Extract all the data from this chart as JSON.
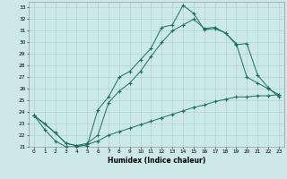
{
  "bg_color": "#cce8e8",
  "grid_color": "#aacccc",
  "line_color": "#1a7060",
  "xlabel": "Humidex (Indice chaleur)",
  "xlim": [
    -0.5,
    23.5
  ],
  "ylim": [
    21,
    33.5
  ],
  "yticks": [
    21,
    22,
    23,
    24,
    25,
    26,
    27,
    28,
    29,
    30,
    31,
    32,
    33
  ],
  "xticks": [
    0,
    1,
    2,
    3,
    4,
    5,
    6,
    7,
    8,
    9,
    10,
    11,
    12,
    13,
    14,
    15,
    16,
    17,
    18,
    19,
    20,
    21,
    22,
    23
  ],
  "line1_x": [
    0,
    1,
    2,
    3,
    4,
    5,
    6,
    7,
    8,
    9,
    10,
    11,
    12,
    13,
    14,
    15,
    16,
    17,
    18,
    19,
    20,
    21,
    22,
    23
  ],
  "line1_y": [
    23.7,
    23.0,
    22.2,
    21.3,
    21.1,
    21.1,
    24.2,
    25.3,
    27.0,
    27.5,
    28.5,
    29.5,
    31.3,
    31.5,
    33.2,
    32.5,
    31.1,
    31.2,
    30.8,
    29.9,
    27.0,
    26.5,
    26.0,
    25.5
  ],
  "line2_x": [
    0,
    2,
    3,
    4,
    5,
    6,
    7,
    8,
    9,
    10,
    11,
    12,
    13,
    14,
    15,
    16,
    17,
    18,
    19,
    20,
    21,
    22,
    23
  ],
  "line2_y": [
    23.7,
    22.2,
    21.3,
    21.1,
    21.3,
    22.0,
    24.8,
    25.8,
    26.5,
    27.5,
    28.8,
    30.0,
    31.0,
    31.5,
    32.0,
    31.2,
    31.3,
    30.8,
    29.8,
    29.9,
    27.2,
    26.1,
    25.3
  ],
  "line3_x": [
    0,
    1,
    2,
    3,
    4,
    5,
    6,
    7,
    8,
    9,
    10,
    11,
    12,
    13,
    14,
    15,
    16,
    17,
    18,
    19,
    20,
    21,
    22,
    23
  ],
  "line3_y": [
    23.7,
    22.5,
    21.5,
    21.0,
    21.0,
    21.2,
    21.5,
    22.0,
    22.3,
    22.6,
    22.9,
    23.2,
    23.5,
    23.8,
    24.1,
    24.4,
    24.6,
    24.9,
    25.1,
    25.3,
    25.3,
    25.4,
    25.4,
    25.5
  ]
}
